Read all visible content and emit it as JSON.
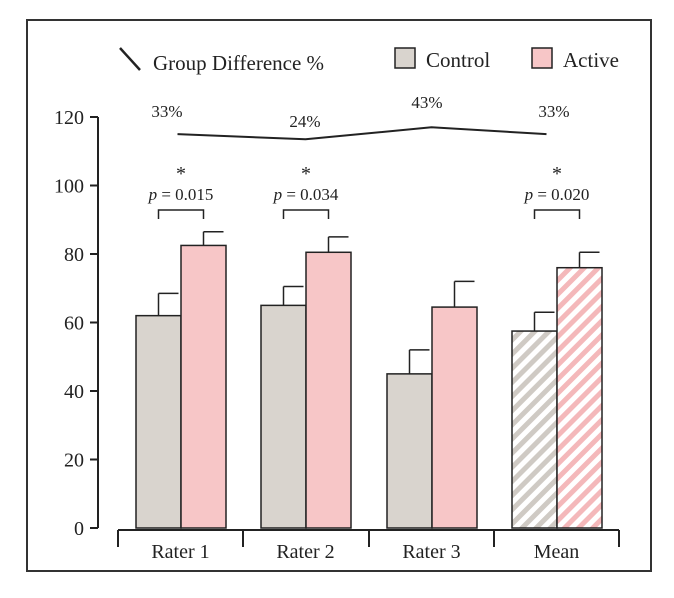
{
  "chart_data": {
    "type": "bar",
    "title": "",
    "xlabel": "",
    "ylabel": "",
    "ylim": [
      0,
      120
    ],
    "yticks": [
      0,
      20,
      40,
      60,
      80,
      100,
      120
    ],
    "categories": [
      "Rater 1",
      "Rater 2",
      "Rater 3",
      "Mean"
    ],
    "series": [
      {
        "name": "Control",
        "color": "#d9d4ce",
        "values": [
          62,
          65,
          45,
          57.5
        ],
        "errors": [
          6.5,
          5.5,
          7,
          5.5
        ]
      },
      {
        "name": "Active",
        "color": "#f7c6c7",
        "values": [
          82.5,
          80.5,
          64.5,
          76
        ],
        "errors": [
          4,
          4.5,
          7.5,
          4.5
        ]
      }
    ],
    "hatched_categories": [
      "Mean"
    ],
    "group_difference": {
      "label": "Group Difference %",
      "values": [
        115,
        113.5,
        117,
        115
      ],
      "labels": [
        "33%",
        "24%",
        "43%",
        "33%"
      ]
    },
    "significance": [
      {
        "category": "Rater 1",
        "star": "*",
        "p_label": "p",
        "p_value": "= 0.015"
      },
      {
        "category": "Rater 2",
        "star": "*",
        "p_label": "p",
        "p_value": "= 0.034"
      },
      {
        "category": "Mean",
        "star": "*",
        "p_label": "p",
        "p_value": "= 0.020"
      }
    ],
    "legend": {
      "placement": "top",
      "entries": [
        "Group Difference %",
        "Control",
        "Active"
      ]
    }
  }
}
